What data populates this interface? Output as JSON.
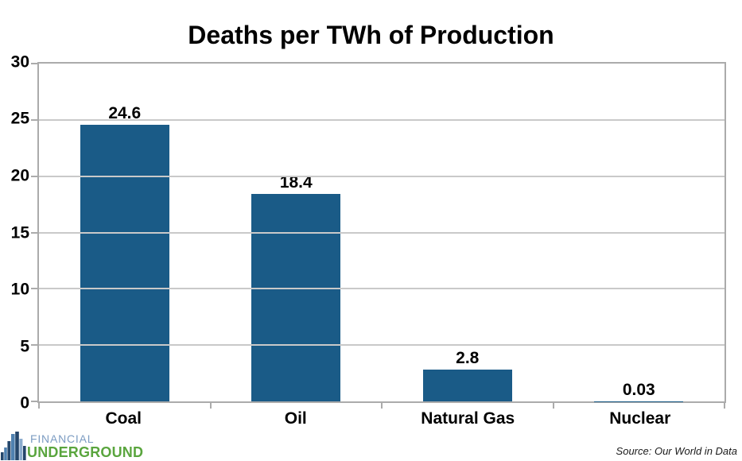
{
  "chart_data": {
    "type": "bar",
    "title": "Deaths per TWh of Production",
    "categories": [
      "Coal",
      "Oil",
      "Natural Gas",
      "Nuclear"
    ],
    "values": [
      24.6,
      18.4,
      2.8,
      0.03
    ],
    "value_labels": [
      "24.6",
      "18.4",
      "2.8",
      "0.03"
    ],
    "xlabel": "",
    "ylabel": "",
    "ylim": [
      0,
      30
    ],
    "yticks": [
      0,
      5,
      10,
      15,
      20,
      25,
      30
    ],
    "grid": "horizontal",
    "legend_position": "none",
    "bar_color": "#1a5b87"
  },
  "footer": {
    "logo": {
      "line1": "FINANCIAL",
      "line2": "UNDERGROUND",
      "icon": "skyline-bars-icon"
    },
    "source": "Source: Our World in Data"
  },
  "colors": {
    "bar": "#1a5b87",
    "gridline": "#c9c9c9",
    "axis_border": "#ababab",
    "title_text": "#000000",
    "logo_financial": "#7c9cc2",
    "logo_underground": "#5aa53e",
    "logo_icon_dark": "#24466b",
    "logo_icon_mid": "#4f81b0",
    "logo_icon_light": "#8aabcd",
    "source_text": "#1a1a1a"
  }
}
